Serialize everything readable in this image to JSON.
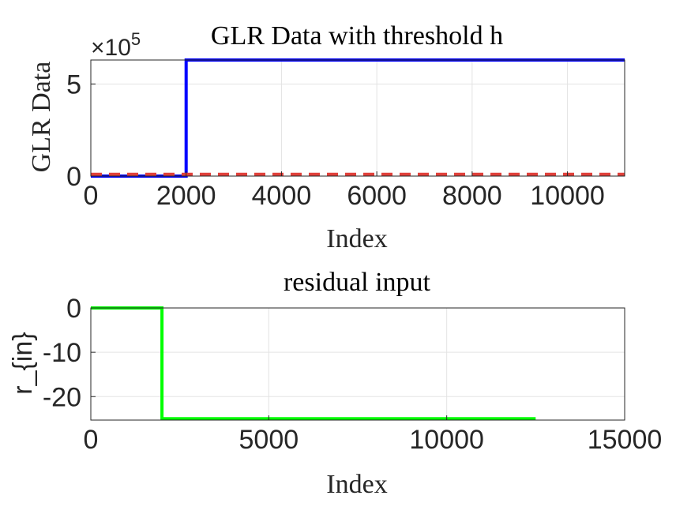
{
  "chart_data": [
    {
      "type": "line",
      "title": "GLR Data with threshold h",
      "xlabel": "Index",
      "ylabel": "GLR Data",
      "xlim": [
        0,
        11200
      ],
      "ylim": [
        0,
        6.3
      ],
      "xticks": [
        0,
        2000,
        4000,
        6000,
        8000,
        10000
      ],
      "xtick_labels": [
        "0",
        "2000",
        "4000",
        "6000",
        "8000",
        "10000"
      ],
      "yticks": [
        0,
        5
      ],
      "ytick_labels": [
        "0",
        "5"
      ],
      "exponent_prefix": "×10",
      "exponent_power": "5",
      "grid": true,
      "series": [
        {
          "color": "#0000ff",
          "style": "solid",
          "x": [
            0,
            2000,
            2000,
            11200
          ],
          "y": [
            0,
            0,
            6.3,
            6.3
          ]
        },
        {
          "color": "#e0403a",
          "style": "dashed",
          "x": [
            0,
            11200
          ],
          "y": [
            0.1,
            0.1
          ]
        }
      ]
    },
    {
      "type": "line",
      "title": "residual input",
      "xlabel": "Index",
      "ylabel": "r_{in}",
      "xlim": [
        0,
        15000
      ],
      "ylim": [
        -25.3,
        0
      ],
      "xticks": [
        0,
        5000,
        10000,
        15000
      ],
      "xtick_labels": [
        "0",
        "5000",
        "10000",
        "15000"
      ],
      "yticks": [
        0,
        -10,
        -20
      ],
      "ytick_labels": [
        "0",
        "-10",
        "-20"
      ],
      "grid": true,
      "series": [
        {
          "color": "#00ff00",
          "style": "solid",
          "x": [
            0,
            2000,
            2000,
            12500
          ],
          "y": [
            0,
            0,
            -25,
            -25
          ]
        }
      ]
    }
  ]
}
